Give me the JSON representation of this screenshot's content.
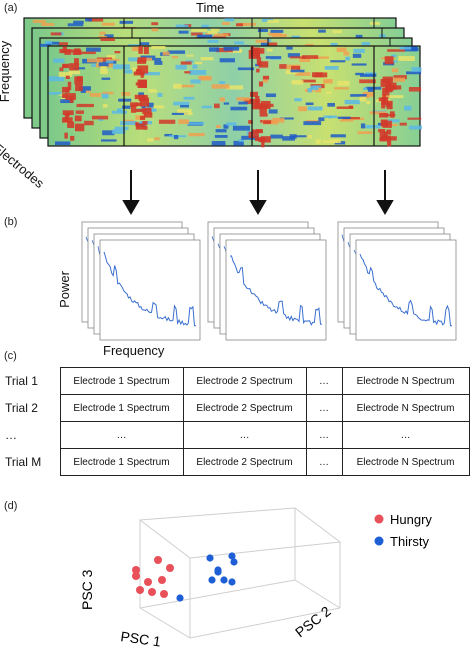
{
  "panel_a": {
    "letter": "(a)",
    "top_label": "Time",
    "side_label": "Frequency",
    "depth_label": "Electrodes",
    "heatmap_colors": {
      "low": "#1e5cc8",
      "mid_low": "#5bb8e6",
      "mid": "#e8e46a",
      "mid_high": "#f0a050",
      "high": "#d23a2a",
      "base": "#8fd28a"
    }
  },
  "panel_b": {
    "letter": "(b)",
    "ylabel": "Power",
    "xlabel": "Frequency",
    "line_color": "#3a6fd0"
  },
  "panel_c": {
    "letter": "(c)",
    "rows": [
      {
        "label": "Trial 1",
        "cells": [
          "Electrode 1 Spectrum",
          "Electrode 2 Spectrum",
          "…",
          "Electrode N Spectrum"
        ]
      },
      {
        "label": "Trial 2",
        "cells": [
          "Electrode 1 Spectrum",
          "Electrode 2 Spectrum",
          "…",
          "Electrode N Spectrum"
        ]
      },
      {
        "label": "…",
        "cells": [
          "…",
          "…",
          "…",
          "…"
        ]
      },
      {
        "label": "Trial M",
        "cells": [
          "Electrode 1 Spectrum",
          "Electrode 2 Spectrum",
          "…",
          "Electrode N Spectrum"
        ]
      }
    ]
  },
  "panel_d": {
    "letter": "(d)",
    "axes": {
      "x": "PSC 1",
      "y": "PSC 2",
      "z": "PSC 3"
    },
    "legend": [
      {
        "name": "Hungry",
        "color": "#e8505a"
      },
      {
        "name": "Thirsty",
        "color": "#1f5fd6"
      }
    ]
  }
}
